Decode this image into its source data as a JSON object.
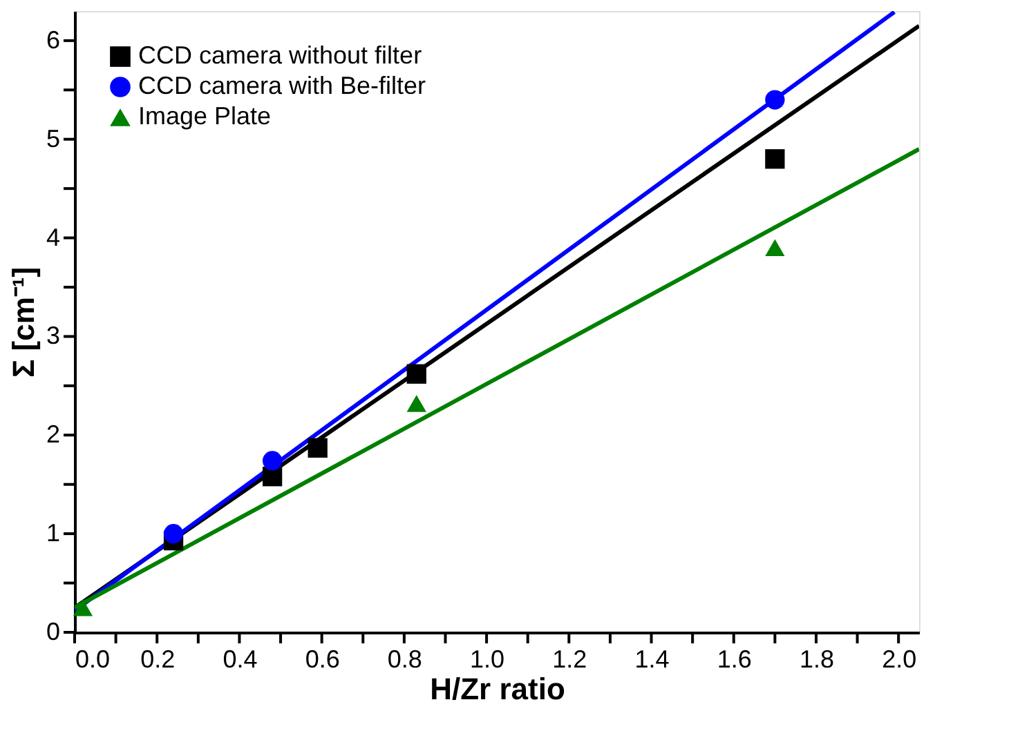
{
  "chart_data": {
    "type": "scatter",
    "xlabel": "H/Zr ratio",
    "ylabel": "Σ [cm⁻¹]",
    "xlim": [
      0,
      2.05
    ],
    "ylim": [
      0,
      6.3
    ],
    "xticks": [
      {
        "value": 0,
        "label": "0.0"
      },
      {
        "value": 0.1,
        "label": null
      },
      {
        "value": 0.2,
        "label": "0.2"
      },
      {
        "value": 0.3,
        "label": null
      },
      {
        "value": 0.4,
        "label": "0.4"
      },
      {
        "value": 0.5,
        "label": null
      },
      {
        "value": 0.6,
        "label": "0.6"
      },
      {
        "value": 0.7,
        "label": null
      },
      {
        "value": 0.8,
        "label": "0.8"
      },
      {
        "value": 0.9,
        "label": null
      },
      {
        "value": 1.0,
        "label": "1.0"
      },
      {
        "value": 1.1,
        "label": null
      },
      {
        "value": 1.2,
        "label": "1.2"
      },
      {
        "value": 1.3,
        "label": null
      },
      {
        "value": 1.4,
        "label": "1.4"
      },
      {
        "value": 1.5,
        "label": null
      },
      {
        "value": 1.6,
        "label": "1.6"
      },
      {
        "value": 1.7,
        "label": null
      },
      {
        "value": 1.8,
        "label": "1.8"
      },
      {
        "value": 1.9,
        "label": null
      },
      {
        "value": 2.0,
        "label": "2.0"
      }
    ],
    "yticks": [
      0,
      {
        "value": 0.5,
        "label": null
      },
      1,
      {
        "value": 1.5,
        "label": null
      },
      2,
      {
        "value": 2.5,
        "label": null
      },
      3,
      {
        "value": 3.5,
        "label": null
      },
      4,
      {
        "value": 4.5,
        "label": null
      },
      5,
      {
        "value": 5.5,
        "label": null
      },
      6
    ],
    "grid": false,
    "legend": "top left",
    "series": [
      {
        "name": "CCD camera without filter",
        "marker": "square",
        "color": "#000000",
        "x": [
          0.24,
          0.48,
          0.59,
          0.83,
          1.7
        ],
        "values": [
          0.93,
          1.58,
          1.87,
          2.62,
          4.8
        ]
      },
      {
        "name": "CCD camera with Be-filter",
        "marker": "circle",
        "color": "#0000ff",
        "x": [
          0.24,
          0.48,
          1.7
        ],
        "values": [
          1.0,
          1.74,
          5.4
        ]
      },
      {
        "name": "Image Plate",
        "marker": "triangle",
        "color": "#008000",
        "x": [
          0.02,
          0.83,
          1.7
        ],
        "values": [
          0.25,
          2.32,
          3.9
        ]
      },
      {
        "type": "line",
        "color": "#000000",
        "x": [
          0,
          2.05
        ],
        "values": [
          0.25,
          6.15
        ]
      },
      {
        "type": "line",
        "color": "#0000ff",
        "x": [
          0,
          1.99
        ],
        "values": [
          0.22,
          6.29
        ]
      },
      {
        "type": "line",
        "color": "#008000",
        "x": [
          0,
          2.05
        ],
        "values": [
          0.25,
          4.9
        ]
      }
    ]
  }
}
